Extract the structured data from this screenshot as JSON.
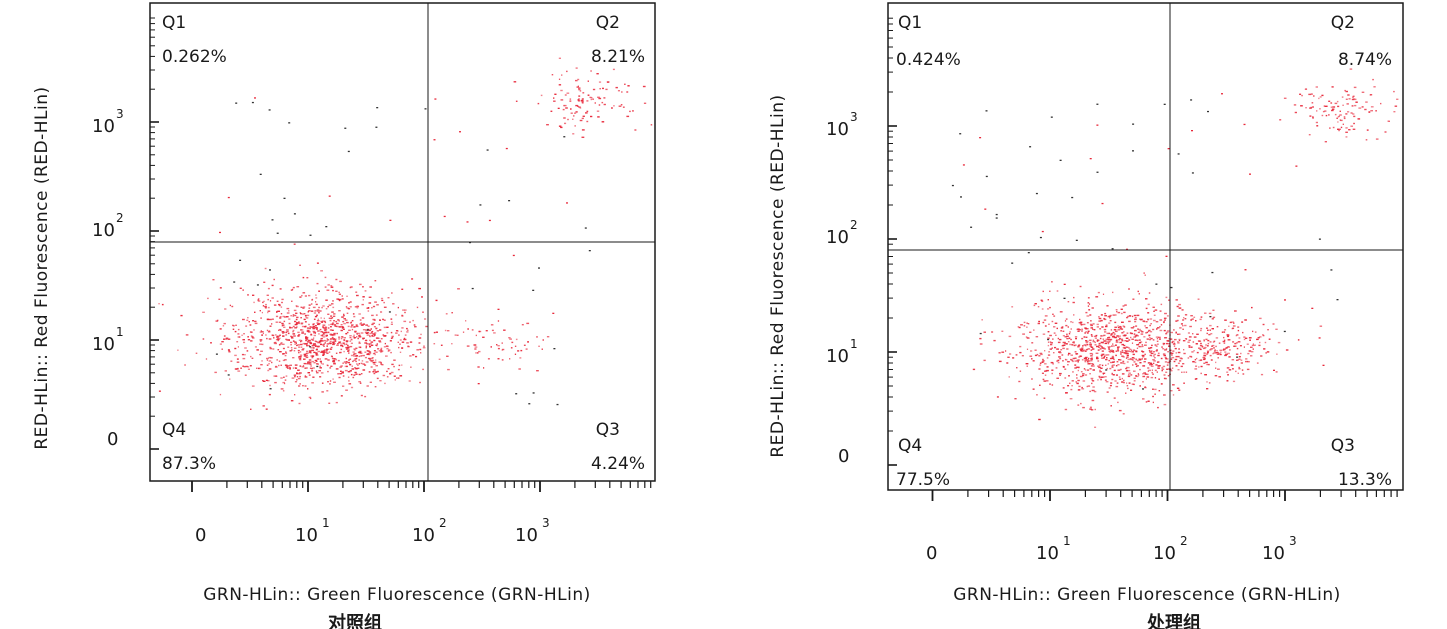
{
  "chart_data": [
    {
      "type": "scatter",
      "xlabel": "GRN-HLin:: Green Fluorescence (GRN-HLin)",
      "ylabel": "RED-HLin:: Red Fluorescence (RED-HLin)",
      "group_label": "对照组",
      "x_ticks": [
        "0",
        "10",
        "10",
        "10"
      ],
      "x_tick_exponents": [
        "",
        "1",
        "2",
        "3"
      ],
      "y_ticks": [
        "0",
        "10",
        "10",
        "10"
      ],
      "y_tick_exponents": [
        "",
        "1",
        "2",
        "3"
      ],
      "x_scale": "log",
      "y_scale": "log",
      "gate": {
        "x": 100,
        "y": 60
      },
      "quadrants": [
        {
          "name": "Q1",
          "percent": "0.262%"
        },
        {
          "name": "Q2",
          "percent": "8.21%"
        },
        {
          "name": "Q3",
          "percent": "4.24%"
        },
        {
          "name": "Q4",
          "percent": "87.3%"
        }
      ],
      "clusters": [
        {
          "center": [
            13,
            10
          ],
          "weight": 0.873
        },
        {
          "center": [
            2500,
            1600
          ],
          "weight": 0.082
        },
        {
          "center": [
            400,
            9
          ],
          "weight": 0.042
        }
      ],
      "point_color": "#e8283a"
    },
    {
      "type": "scatter",
      "xlabel": "GRN-HLin:: Green Fluorescence (GRN-HLin)",
      "ylabel": "RED-HLin:: Red Fluorescence (RED-HLin)",
      "group_label": "处理组",
      "x_ticks": [
        "0",
        "10",
        "10",
        "10"
      ],
      "x_tick_exponents": [
        "",
        "1",
        "2",
        "3"
      ],
      "y_ticks": [
        "0",
        "10",
        "10",
        "10"
      ],
      "y_tick_exponents": [
        "",
        "1",
        "2",
        "3"
      ],
      "x_scale": "log",
      "y_scale": "log",
      "gate": {
        "x": 100,
        "y": 60
      },
      "quadrants": [
        {
          "name": "Q1",
          "percent": "0.424%"
        },
        {
          "name": "Q2",
          "percent": "8.74%"
        },
        {
          "name": "Q3",
          "percent": "13.3%"
        },
        {
          "name": "Q4",
          "percent": "77.5%"
        }
      ],
      "clusters": [
        {
          "center": [
            35,
            11
          ],
          "weight": 0.775
        },
        {
          "center": [
            3200,
            1400
          ],
          "weight": 0.087
        },
        {
          "center": [
            300,
            12
          ],
          "weight": 0.133
        }
      ],
      "point_color": "#e8283a"
    }
  ]
}
